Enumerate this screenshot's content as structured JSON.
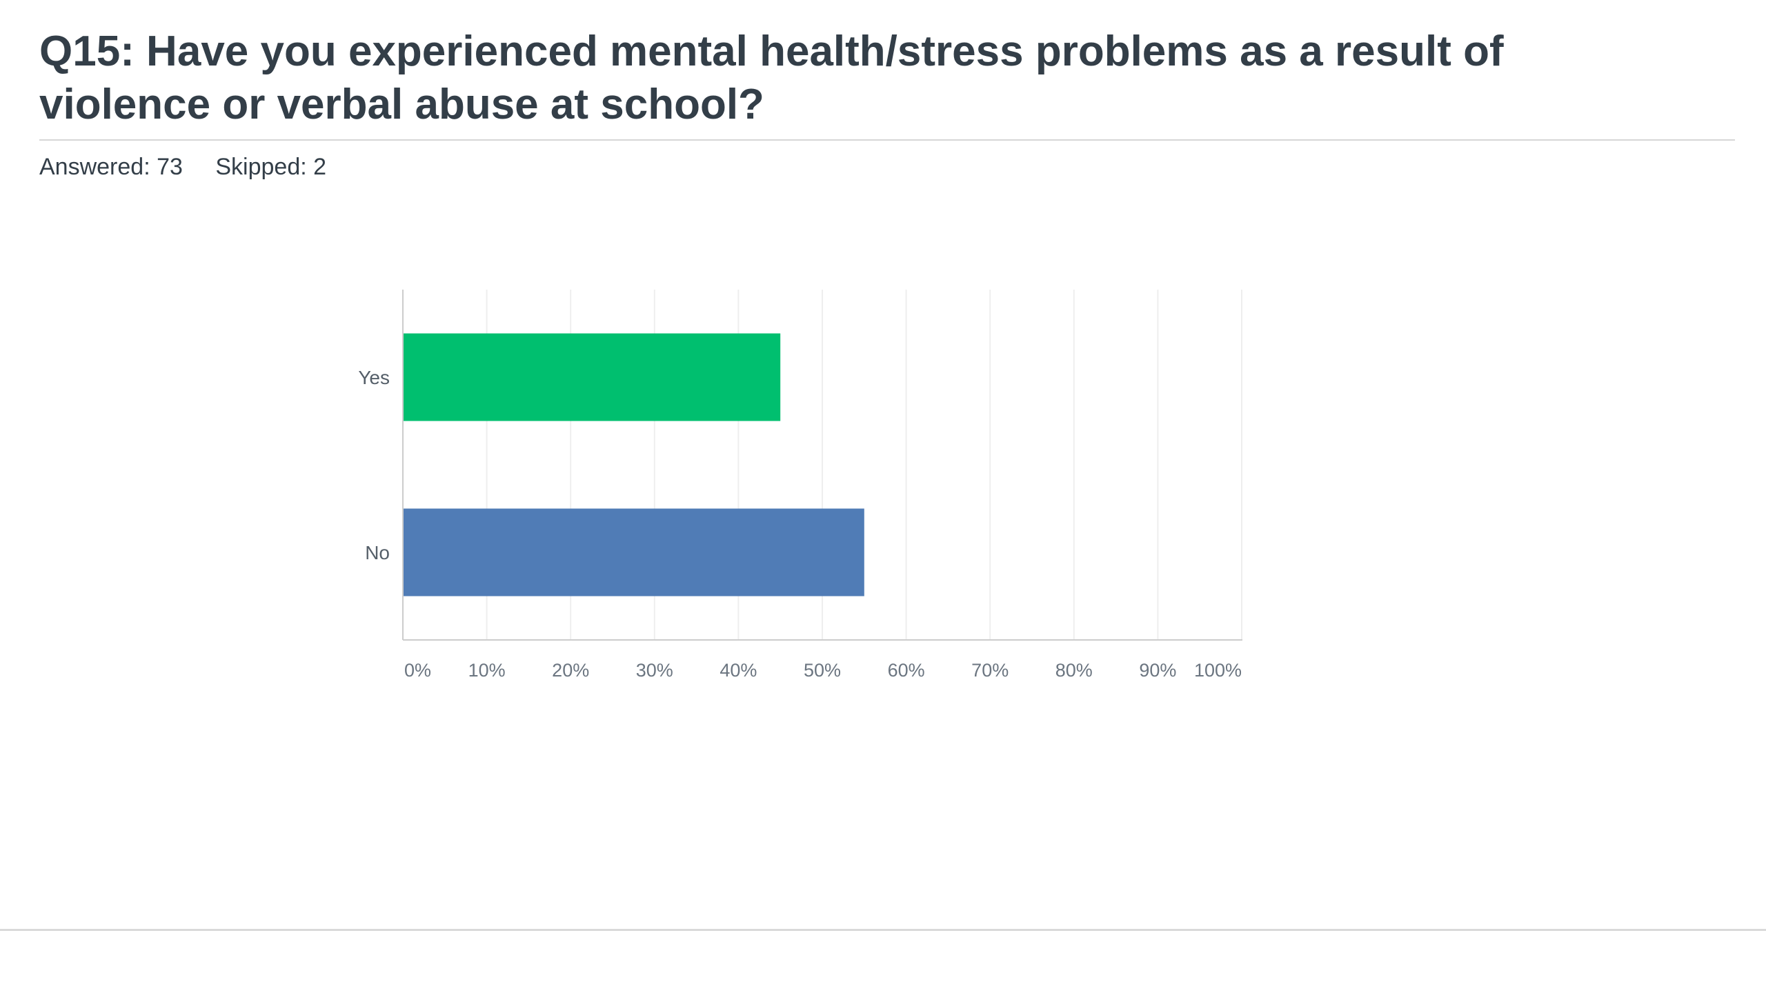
{
  "header": {
    "title": "Q15: Have you experienced mental health/stress problems as a result of violence or verbal abuse at school?",
    "answered_label": "Answered: 73",
    "skipped_label": "Skipped: 2"
  },
  "chart_data": {
    "type": "bar",
    "orientation": "horizontal",
    "categories": [
      "Yes",
      "No"
    ],
    "values": [
      45,
      55
    ],
    "colors": [
      "#00bf6f",
      "#507cb6"
    ],
    "xlim": [
      0,
      100
    ],
    "xticks": [
      "0%",
      "10%",
      "20%",
      "30%",
      "40%",
      "50%",
      "60%",
      "70%",
      "80%",
      "90%",
      "100%"
    ],
    "grid": true,
    "legend": "none",
    "axis_color": "#cccccc",
    "grid_color": "#eeeeee"
  }
}
